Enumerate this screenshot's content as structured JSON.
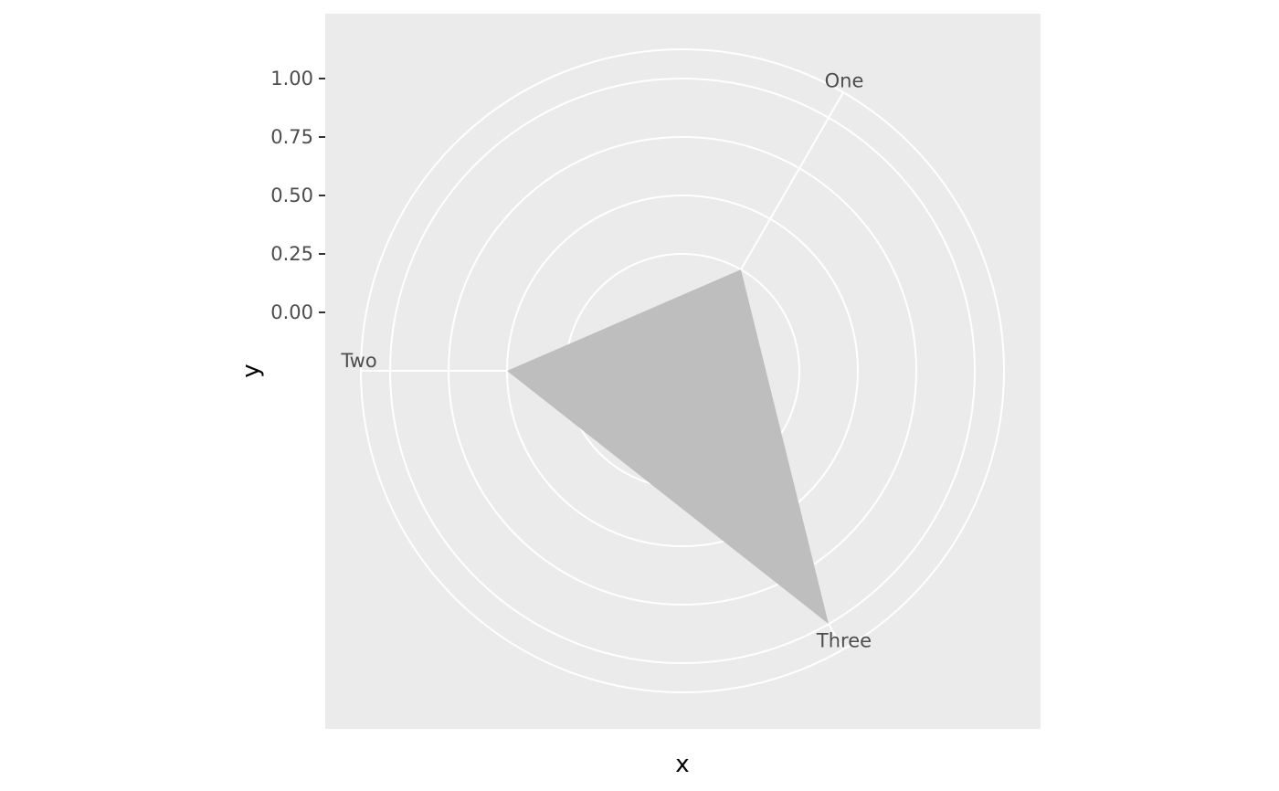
{
  "chart_data": {
    "type": "radar",
    "coord": "polar",
    "categories": [
      "One",
      "Two",
      "Three"
    ],
    "series": [
      {
        "values": [
          0.25,
          0.5,
          1.0
        ]
      }
    ],
    "ylim": [
      -0.25,
      1.0
    ],
    "r_range": [
      -0.25,
      1.125
    ],
    "y_ticks": [
      0.0,
      0.25,
      0.5,
      0.75,
      1.0
    ],
    "y_tick_labels": [
      "0.00",
      "0.25",
      "0.50",
      "0.75",
      "1.00"
    ],
    "xlabel": "x",
    "ylabel": "y",
    "grid": true,
    "polygon_fill": "#bebebe",
    "panel_background": "#ebebeb",
    "gridline_color": "#ffffff",
    "tick_label_color": "#4d4d4d"
  }
}
